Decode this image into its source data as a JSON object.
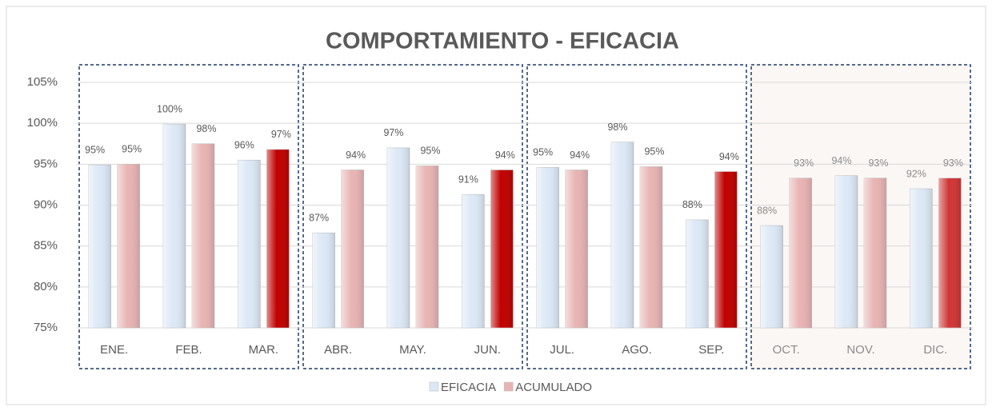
{
  "chart_data": {
    "type": "bar",
    "title": "COMPORTAMIENTO - EFICACIA",
    "categories": [
      "ENE.",
      "FEB.",
      "MAR.",
      "ABR.",
      "MAY.",
      "JUN.",
      "JUL.",
      "AGO.",
      "SEP.",
      "OCT.",
      "NOV.",
      "DIC."
    ],
    "series": [
      {
        "name": "EFICACIA",
        "color": "#dce8f6",
        "values": [
          94.9,
          99.9,
          95.5,
          86.6,
          97,
          91.3,
          94.6,
          97.7,
          88.2,
          87.5,
          93.6,
          92
        ],
        "value_labels": [
          "95%",
          "100%",
          "96%",
          "87%",
          "97%",
          "91%",
          "95%",
          "98%",
          "88%",
          "88%",
          "94%",
          "92%"
        ]
      },
      {
        "name": "ACUMULADO",
        "color": "#e8b3b3",
        "colors": [
          "#e8b3b3",
          "#e8b3b3",
          "#c00000",
          "#e8b3b3",
          "#e8b3b3",
          "#c00000",
          "#e8b3b3",
          "#e8b3b3",
          "#c00000",
          "#e8b3b3",
          "#e8b3b3",
          "#d03535"
        ],
        "values": [
          95,
          97.5,
          96.8,
          94.3,
          94.8,
          94.3,
          94.3,
          94.7,
          94.1,
          93.3,
          93.3,
          93.3
        ],
        "value_labels": [
          "95%",
          "98%",
          "97%",
          "94%",
          "95%",
          "94%",
          "94%",
          "95%",
          "94%",
          "93%",
          "93%",
          "93%"
        ]
      }
    ],
    "ylim": [
      75,
      105
    ],
    "yticks": [
      {
        "value": 75,
        "label": "75%"
      },
      {
        "value": 80,
        "label": "80%"
      },
      {
        "value": 85,
        "label": "85%"
      },
      {
        "value": 90,
        "label": "90%"
      },
      {
        "value": 95,
        "label": "95%"
      },
      {
        "value": 100,
        "label": "100%"
      },
      {
        "value": 105,
        "label": "105%"
      }
    ],
    "grid": true,
    "legend": "bottom"
  }
}
